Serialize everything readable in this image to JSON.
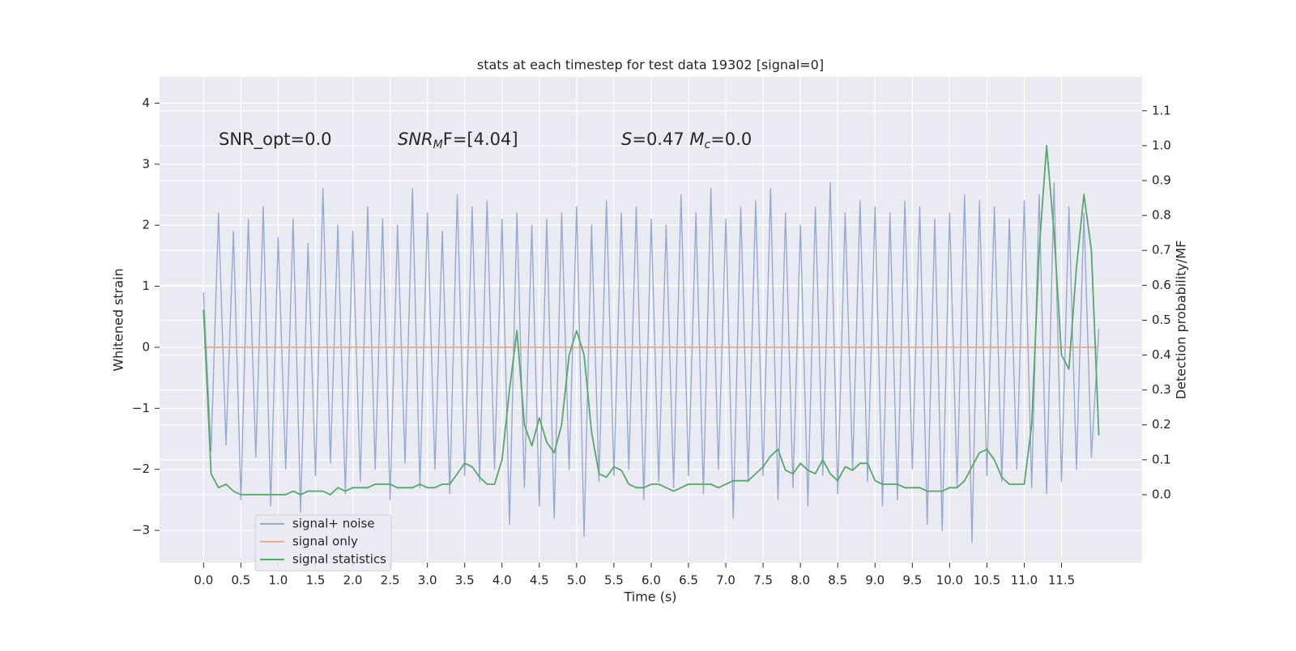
{
  "chart_data": {
    "type": "line",
    "title": "stats at each timestep for test data 19302 [signal=0]",
    "xlabel": "Time (s)",
    "ylabel": "Whitened strain",
    "y2label": "Detection probability/MF",
    "annotations": [
      [
        "SNR_opt=0.0"
      ],
      [
        "SNR",
        "M",
        "F=[4.04]"
      ],
      [
        "S",
        "=0.47   ",
        "M",
        "c",
        "=0.0"
      ]
    ],
    "x": [
      0.0,
      0.1,
      0.2,
      0.3,
      0.4,
      0.5,
      0.6,
      0.7,
      0.8,
      0.9,
      1.0,
      1.1,
      1.2,
      1.3,
      1.4,
      1.5,
      1.6,
      1.7,
      1.8,
      1.9,
      2.0,
      2.1,
      2.2,
      2.3,
      2.4,
      2.5,
      2.6,
      2.7,
      2.8,
      2.9,
      3.0,
      3.1,
      3.2,
      3.3,
      3.4,
      3.5,
      3.6,
      3.7,
      3.8,
      3.9,
      4.0,
      4.1,
      4.2,
      4.3,
      4.4,
      4.5,
      4.6,
      4.7,
      4.8,
      4.9,
      5.0,
      5.1,
      5.2,
      5.3,
      5.4,
      5.5,
      5.6,
      5.7,
      5.8,
      5.9,
      6.0,
      6.1,
      6.2,
      6.3,
      6.4,
      6.5,
      6.6,
      6.7,
      6.8,
      6.9,
      7.0,
      7.1,
      7.2,
      7.3,
      7.4,
      7.5,
      7.6,
      7.7,
      7.8,
      7.9,
      8.0,
      8.1,
      8.2,
      8.3,
      8.4,
      8.5,
      8.6,
      8.7,
      8.8,
      8.9,
      9.0,
      9.1,
      9.2,
      9.3,
      9.4,
      9.5,
      9.6,
      9.7,
      9.8,
      9.9,
      10.0,
      10.1,
      10.2,
      10.3,
      10.4,
      10.5,
      10.6,
      10.7,
      10.8,
      10.9,
      11.0,
      11.1,
      11.2,
      11.3,
      11.4,
      11.5,
      11.6,
      11.7,
      11.8,
      11.9,
      12.0
    ],
    "series": [
      {
        "name": "signal+ noise",
        "color": "#98a9cf",
        "axis": "y",
        "values": [
          0.9,
          -1.7,
          2.2,
          -1.6,
          1.9,
          -2.5,
          2.1,
          -1.8,
          2.3,
          -2.6,
          1.8,
          -2.0,
          2.1,
          -2.7,
          1.7,
          -2.1,
          2.6,
          -1.9,
          2.0,
          -2.4,
          1.9,
          -2.2,
          2.3,
          -2.0,
          2.1,
          -2.5,
          2.0,
          -1.9,
          2.6,
          -2.3,
          2.2,
          -2.0,
          1.9,
          -2.4,
          2.5,
          -2.1,
          2.3,
          -2.2,
          2.4,
          -2.0,
          2.1,
          -2.9,
          2.2,
          -2.3,
          2.0,
          -2.6,
          2.1,
          -2.8,
          2.2,
          -2.0,
          2.3,
          -3.1,
          2.0,
          -2.2,
          2.4,
          -2.1,
          2.2,
          -2.0,
          2.3,
          -2.5,
          2.1,
          -2.2,
          2.0,
          -2.3,
          2.5,
          -2.1,
          2.2,
          -2.4,
          2.6,
          -2.0,
          2.1,
          -2.8,
          2.3,
          -2.2,
          2.4,
          -2.1,
          2.6,
          -2.5,
          2.2,
          -2.3,
          2.0,
          -2.6,
          2.3,
          -2.1,
          2.7,
          -2.4,
          2.2,
          -2.0,
          2.4,
          -2.2,
          2.3,
          -2.6,
          2.2,
          -2.5,
          2.4,
          -2.0,
          2.3,
          -2.9,
          2.1,
          -3.0,
          2.2,
          -2.3,
          2.5,
          -3.2,
          2.4,
          -2.1,
          2.3,
          -2.2,
          2.1,
          -2.0,
          2.4,
          -2.3,
          2.5,
          -2.4,
          2.7,
          -2.2,
          2.3,
          -2.0,
          2.2,
          -1.8,
          0.3
        ]
      },
      {
        "name": "signal only",
        "color": "#e8a88a",
        "axis": "y",
        "values": [
          0,
          0,
          0,
          0,
          0,
          0,
          0,
          0,
          0,
          0,
          0,
          0,
          0,
          0,
          0,
          0,
          0,
          0,
          0,
          0,
          0,
          0,
          0,
          0,
          0,
          0,
          0,
          0,
          0,
          0,
          0,
          0,
          0,
          0,
          0,
          0,
          0,
          0,
          0,
          0,
          0,
          0,
          0,
          0,
          0,
          0,
          0,
          0,
          0,
          0,
          0,
          0,
          0,
          0,
          0,
          0,
          0,
          0,
          0,
          0,
          0,
          0,
          0,
          0,
          0,
          0,
          0,
          0,
          0,
          0,
          0,
          0,
          0,
          0,
          0,
          0,
          0,
          0,
          0,
          0,
          0,
          0,
          0,
          0,
          0,
          0,
          0,
          0,
          0,
          0,
          0,
          0,
          0,
          0,
          0,
          0,
          0,
          0,
          0,
          0,
          0,
          0,
          0,
          0,
          0,
          0,
          0,
          0,
          0,
          0,
          0,
          0,
          0,
          0,
          0,
          0,
          0,
          0,
          0,
          0,
          0
        ]
      },
      {
        "name": "signal statistics",
        "color": "#55a868",
        "axis": "y2",
        "values": [
          0.53,
          0.06,
          0.02,
          0.03,
          0.01,
          0.0,
          0.0,
          0.0,
          0.0,
          0.0,
          0.0,
          0.0,
          0.01,
          0.0,
          0.01,
          0.01,
          0.01,
          0.0,
          0.02,
          0.01,
          0.02,
          0.02,
          0.02,
          0.03,
          0.03,
          0.03,
          0.02,
          0.02,
          0.02,
          0.03,
          0.02,
          0.02,
          0.03,
          0.03,
          0.06,
          0.09,
          0.08,
          0.05,
          0.03,
          0.03,
          0.1,
          0.3,
          0.47,
          0.2,
          0.14,
          0.22,
          0.15,
          0.12,
          0.2,
          0.4,
          0.47,
          0.4,
          0.18,
          0.06,
          0.05,
          0.08,
          0.07,
          0.03,
          0.02,
          0.02,
          0.03,
          0.03,
          0.02,
          0.01,
          0.02,
          0.03,
          0.03,
          0.03,
          0.03,
          0.02,
          0.03,
          0.04,
          0.04,
          0.04,
          0.06,
          0.08,
          0.11,
          0.13,
          0.07,
          0.06,
          0.09,
          0.07,
          0.06,
          0.1,
          0.06,
          0.04,
          0.08,
          0.07,
          0.09,
          0.09,
          0.04,
          0.03,
          0.03,
          0.03,
          0.02,
          0.02,
          0.02,
          0.01,
          0.01,
          0.01,
          0.02,
          0.02,
          0.04,
          0.08,
          0.12,
          0.13,
          0.1,
          0.05,
          0.03,
          0.03,
          0.03,
          0.2,
          0.7,
          1.0,
          0.75,
          0.4,
          0.36,
          0.65,
          0.86,
          0.7,
          0.17
        ]
      }
    ],
    "xlim": [
      -0.59,
      12.58
    ],
    "xticks": [
      {
        "value": 0,
        "label": "0.0"
      },
      0.5,
      {
        "value": 1,
        "label": "1.0"
      },
      1.5,
      {
        "value": 2,
        "label": "2.0"
      },
      2.5,
      {
        "value": 3,
        "label": "3.0"
      },
      3.5,
      {
        "value": 4,
        "label": "4.0"
      },
      4.5,
      {
        "value": 5,
        "label": "5.0"
      },
      5.5,
      {
        "value": 6,
        "label": "6.0"
      },
      6.5,
      {
        "value": 7,
        "label": "7.0"
      },
      7.5,
      {
        "value": 8,
        "label": "8.0"
      },
      8.5,
      {
        "value": 9,
        "label": "9.0"
      },
      9.5,
      {
        "value": 10,
        "label": "10.0"
      },
      10.5,
      {
        "value": 11,
        "label": "11.0"
      },
      11.5
    ],
    "ylim": [
      -3.53,
      4.43
    ],
    "yticks": [
      {
        "value": -3,
        "label": "−3"
      },
      {
        "value": -2,
        "label": "−2"
      },
      {
        "value": -1,
        "label": "−1"
      },
      0,
      1,
      2,
      3,
      4
    ],
    "y2lim": [
      -0.195,
      1.197
    ],
    "y2ticks": [
      {
        "value": 0,
        "label": "0.0"
      },
      0.1,
      0.2,
      0.3,
      0.4,
      0.5,
      0.6,
      0.7,
      0.8,
      0.9,
      {
        "value": 1,
        "label": "1.0"
      },
      1.1
    ],
    "grid": true,
    "legend": "lower left"
  }
}
